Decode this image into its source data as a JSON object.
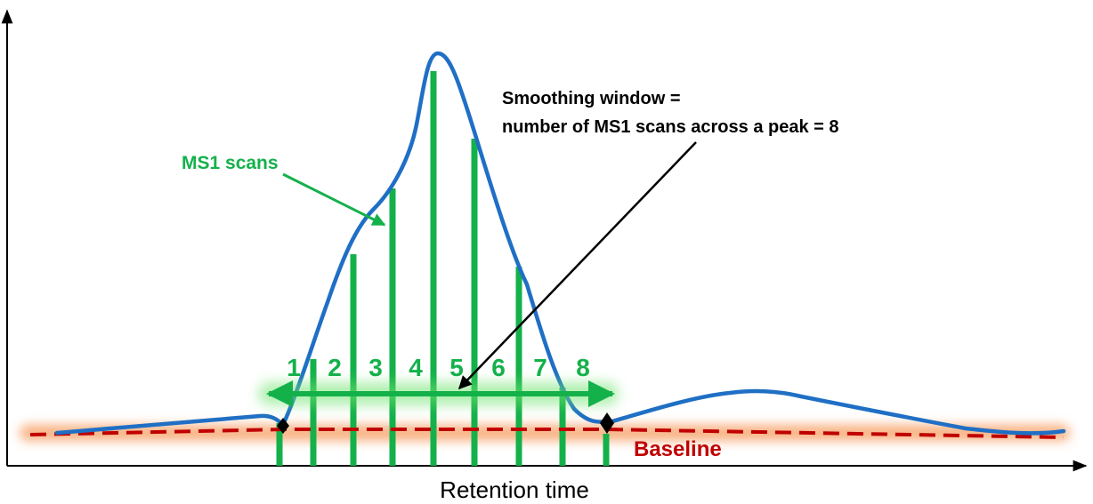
{
  "diagram": {
    "axis": {
      "x_label": "Retention time"
    },
    "labels": {
      "ms1_scans": "MS1 scans",
      "smoothing_line1": "Smoothing window =",
      "smoothing_line2": "number of MS1 scans across a peak = 8",
      "baseline": "Baseline"
    },
    "scan_numbers": [
      "1",
      "2",
      "3",
      "4",
      "5",
      "6",
      "7",
      "8"
    ],
    "colors": {
      "signal": "#1f6fc5",
      "scan_bars": "#14b14b",
      "baseline": "#c00000",
      "baseline_glow": "#f7a36b",
      "axis": "#000000",
      "arrow": "#000000"
    }
  }
}
